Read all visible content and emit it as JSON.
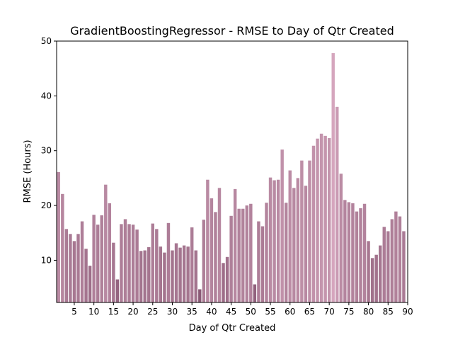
{
  "chart_data": {
    "type": "bar",
    "title": "GradientBoostingRegressor - RMSE to Day of Qtr Created",
    "xlabel": "Day of Qtr Created",
    "ylabel": "RMSE (Hours)",
    "x": [
      1,
      2,
      3,
      4,
      5,
      6,
      7,
      8,
      9,
      10,
      11,
      12,
      13,
      14,
      15,
      16,
      17,
      18,
      19,
      20,
      21,
      22,
      23,
      24,
      25,
      26,
      27,
      28,
      29,
      30,
      31,
      32,
      33,
      34,
      35,
      36,
      37,
      38,
      39,
      40,
      41,
      42,
      43,
      44,
      45,
      46,
      47,
      48,
      49,
      50,
      51,
      52,
      53,
      54,
      55,
      56,
      57,
      58,
      59,
      60,
      61,
      62,
      63,
      64,
      65,
      66,
      67,
      68,
      69,
      70,
      71,
      72,
      73,
      74,
      75,
      76,
      77,
      78,
      79,
      80,
      81,
      82,
      83,
      84,
      85,
      86,
      87,
      88,
      89
    ],
    "values": [
      26.1,
      22.1,
      15.7,
      14.8,
      13.5,
      14.8,
      17.1,
      12.1,
      9.0,
      18.3,
      16.5,
      18.2,
      23.8,
      20.4,
      13.2,
      6.5,
      16.6,
      17.5,
      16.6,
      16.5,
      15.6,
      11.7,
      11.8,
      12.4,
      16.7,
      15.7,
      12.5,
      11.4,
      16.8,
      11.8,
      13.1,
      12.3,
      12.7,
      12.5,
      16.0,
      11.8,
      4.7,
      17.4,
      24.7,
      21.3,
      18.8,
      23.2,
      9.5,
      10.6,
      18.1,
      23.0,
      19.4,
      19.4,
      20.0,
      20.3,
      5.6,
      17.1,
      16.2,
      20.5,
      25.1,
      24.6,
      24.7,
      30.2,
      20.5,
      26.4,
      23.2,
      25.0,
      28.2,
      23.6,
      28.2,
      30.9,
      32.2,
      33.1,
      32.7,
      32.3,
      47.8,
      38.0,
      25.8,
      21.0,
      20.6,
      20.4,
      18.9,
      19.5,
      20.3,
      13.5,
      10.4,
      11.0,
      12.7,
      16.1,
      15.3,
      17.5,
      18.9,
      18.0,
      15.3
    ],
    "xticks": [
      5,
      10,
      15,
      20,
      25,
      30,
      35,
      40,
      45,
      50,
      55,
      60,
      65,
      70,
      75,
      80,
      85,
      90
    ],
    "yticks": [
      10,
      20,
      30,
      40,
      50
    ],
    "xlim": [
      0.5,
      90
    ],
    "ylim": [
      2.3,
      50
    ],
    "grid": false,
    "colors": {
      "dark": "#8a5a76",
      "light": "#d5a6bd"
    }
  }
}
